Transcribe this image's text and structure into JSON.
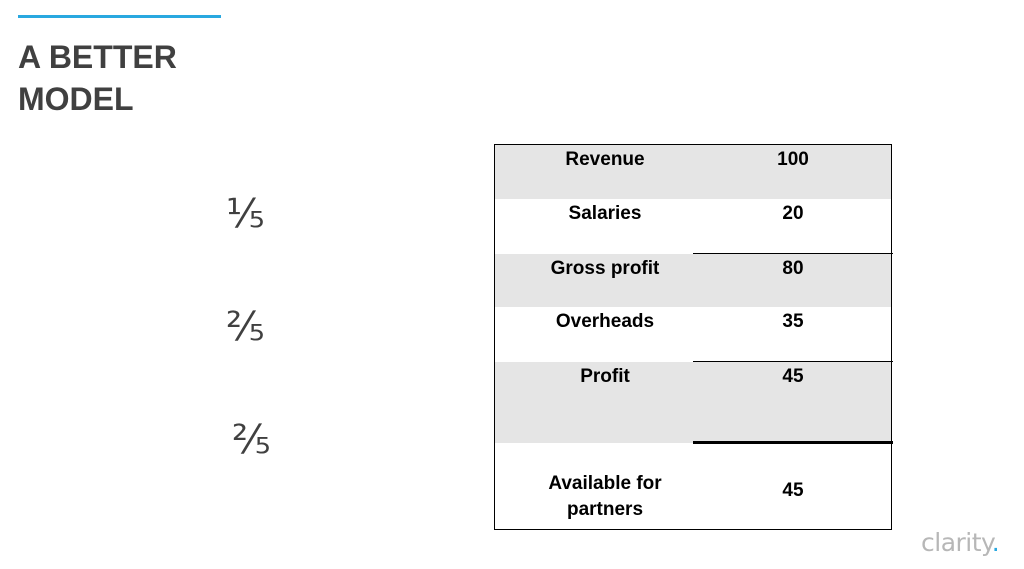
{
  "slide": {
    "title_line1": "A BETTER",
    "title_line2": "MODEL",
    "colors": {
      "accent": "#29a8e0",
      "title": "#404040",
      "row_shade": "#e5e5e5",
      "logo": "#b7b7b7"
    }
  },
  "fractions": [
    "⅕",
    "⅖",
    "⅖"
  ],
  "table": {
    "rows": [
      {
        "label": "Revenue",
        "value": "100",
        "shaded": true
      },
      {
        "label": "Salaries",
        "value": "20",
        "shaded": false
      },
      {
        "label": "Gross profit",
        "value": "80",
        "shaded": true
      },
      {
        "label": "Overheads",
        "value": "35",
        "shaded": false
      },
      {
        "label": "Profit",
        "value": "45",
        "shaded": true
      },
      {
        "label_line1": "Available for",
        "label_line2": "partners",
        "value": "45",
        "shaded": false
      }
    ]
  },
  "logo": {
    "text": "clarity",
    "dot": "."
  }
}
